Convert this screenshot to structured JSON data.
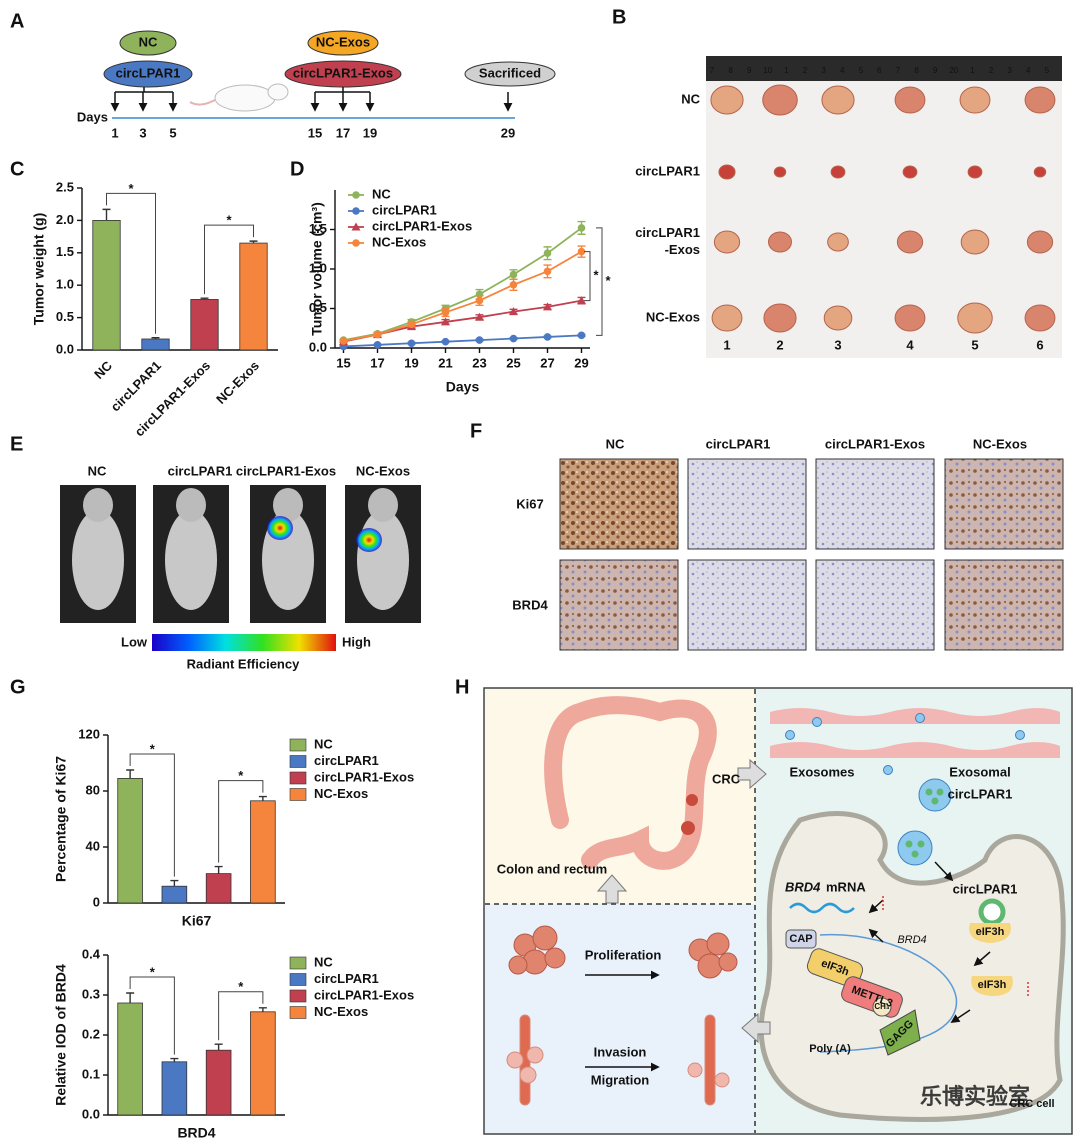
{
  "panel_labels": [
    "A",
    "B",
    "C",
    "D",
    "E",
    "F",
    "G",
    "H"
  ],
  "timeline": {
    "groups": [
      "NC",
      "circLPAR1",
      "NC-Exos",
      "circLPAR1-Exos",
      "Sacrificed"
    ],
    "days_label": "Days",
    "days": [
      1,
      3,
      5,
      15,
      17,
      19,
      29
    ]
  },
  "tumor_photo": {
    "ruler": [
      7,
      8,
      9,
      10,
      1,
      2,
      3,
      4,
      5,
      6,
      7,
      8,
      9,
      20,
      1,
      2,
      3,
      4,
      5
    ],
    "rows": [
      [
        "NC"
      ],
      [
        "circLPAR1"
      ],
      [
        "circLPAR1",
        "-Exos"
      ],
      [
        "NC-Exos"
      ]
    ],
    "columns": [
      1,
      2,
      3,
      4,
      5,
      6
    ]
  },
  "imaging": {
    "groups": [
      "NC",
      "circLPAR1",
      "circLPAR1-Exos",
      "NC-Exos"
    ],
    "scale_low": "Low",
    "scale_high": "High",
    "scale_label": "Radiant Efficiency"
  },
  "ihc": {
    "columns": [
      "NC",
      "circLPAR1",
      "circLPAR1-Exos",
      "NC-Exos"
    ],
    "rows": [
      "Ki67",
      "BRD4"
    ]
  },
  "chart_data": [
    {
      "type": "bar",
      "ylabel": "Tumor weight (g)",
      "categories": [
        "NC",
        "circLPAR1",
        "circLPAR1-Exos",
        "NC-Exos"
      ],
      "values": [
        2.0,
        0.17,
        0.78,
        1.65
      ],
      "errors": [
        0.17,
        0.02,
        0.02,
        0.03
      ],
      "colors": [
        "#8fb35a",
        "#4a78c2",
        "#c0404f",
        "#f5843c"
      ],
      "ylim": [
        0,
        2.5
      ],
      "yticks": [
        {
          "value": 0,
          "label": "0.0"
        },
        {
          "value": 0.5,
          "label": "0.5"
        },
        {
          "value": 1,
          "label": "1.0"
        },
        {
          "value": 1.5,
          "label": "1.5"
        },
        {
          "value": 2,
          "label": "2.0"
        },
        {
          "value": 2.5,
          "label": "2.5"
        }
      ],
      "annotations": [
        "*",
        "*"
      ]
    },
    {
      "type": "line",
      "xlabel": "Days",
      "ylabel": "Tumor volume (cm³)",
      "x": [
        15,
        17,
        19,
        21,
        23,
        25,
        27,
        29
      ],
      "xlim": [
        14.5,
        29.5
      ],
      "xticks": [
        15,
        17,
        19,
        21,
        23,
        25,
        27,
        29
      ],
      "ylim": [
        0,
        2.0
      ],
      "yticks": [
        {
          "value": 0,
          "label": "0.0"
        },
        {
          "value": 0.5,
          "label": "0.5"
        },
        {
          "value": 1,
          "label": "1.0"
        },
        {
          "value": 1.5,
          "label": "1.5"
        }
      ],
      "legend": "upper left",
      "series": [
        {
          "name": "NC",
          "color": "#8fb35a",
          "marker": "circle",
          "values": [
            0.1,
            0.18,
            0.33,
            0.5,
            0.68,
            0.93,
            1.2,
            1.52
          ],
          "errors": [
            0.01,
            0.02,
            0.03,
            0.04,
            0.06,
            0.06,
            0.08,
            0.08
          ]
        },
        {
          "name": "circLPAR1",
          "color": "#4a78c2",
          "marker": "circle",
          "values": [
            0.02,
            0.04,
            0.06,
            0.08,
            0.1,
            0.12,
            0.14,
            0.16
          ],
          "errors": [
            0.005,
            0.005,
            0.01,
            0.01,
            0.01,
            0.01,
            0.01,
            0.01
          ]
        },
        {
          "name": "circLPAR1-Exos",
          "color": "#c0404f",
          "marker": "triangle",
          "values": [
            0.08,
            0.17,
            0.27,
            0.33,
            0.39,
            0.46,
            0.52,
            0.6
          ],
          "errors": [
            0.01,
            0.02,
            0.02,
            0.03,
            0.03,
            0.03,
            0.03,
            0.04
          ]
        },
        {
          "name": "NC-Exos",
          "color": "#f5843c",
          "marker": "circle",
          "values": [
            0.09,
            0.17,
            0.3,
            0.45,
            0.6,
            0.8,
            0.97,
            1.22
          ],
          "errors": [
            0.01,
            0.02,
            0.03,
            0.05,
            0.06,
            0.07,
            0.08,
            0.07
          ]
        }
      ],
      "annotations": [
        "*",
        "*"
      ]
    },
    {
      "type": "bar",
      "ylabel": "Percentage of Ki67",
      "xlabel": "Ki67",
      "categories": [
        "NC",
        "circLPAR1",
        "circLPAR1-Exos",
        "NC-Exos"
      ],
      "values": [
        89,
        12,
        21,
        73
      ],
      "errors": [
        6,
        4,
        5,
        3
      ],
      "colors": [
        "#8fb35a",
        "#4a78c2",
        "#c0404f",
        "#f5843c"
      ],
      "ylim": [
        0,
        120
      ],
      "yticks": [
        0,
        40,
        80,
        120
      ],
      "legend": "right",
      "annotations": [
        "*",
        "*"
      ]
    },
    {
      "type": "bar",
      "ylabel": "Relative IOD of BRD4",
      "xlabel": "BRD4",
      "categories": [
        "NC",
        "circLPAR1",
        "circLPAR1-Exos",
        "NC-Exos"
      ],
      "values": [
        0.28,
        0.133,
        0.162,
        0.258
      ],
      "errors": [
        0.025,
        0.008,
        0.015,
        0.01
      ],
      "colors": [
        "#8fb35a",
        "#4a78c2",
        "#c0404f",
        "#f5843c"
      ],
      "ylim": [
        0,
        0.4
      ],
      "yticks": [
        {
          "value": 0,
          "label": "0.0"
        },
        {
          "value": 0.1,
          "label": "0.1"
        },
        {
          "value": 0.2,
          "label": "0.2"
        },
        {
          "value": 0.3,
          "label": "0.3"
        },
        {
          "value": 0.4,
          "label": "0.4"
        }
      ],
      "legend": "right",
      "annotations": [
        "*",
        "*"
      ]
    }
  ],
  "mechanism": {
    "crc": "CRC",
    "colon": "Colon and rectum",
    "proliferation": "Proliferation",
    "invasion": "Invasion",
    "migration": "Migration",
    "exosomes": "Exosomes",
    "exosomal": [
      "Exosomal",
      "circLPAR1"
    ],
    "brd4_mrna": {
      "gene": "BRD4",
      "label": "mRNA"
    },
    "circ": "circLPAR1",
    "cap": "CAP",
    "brd4": "BRD4",
    "eif3h": [
      "eIF3h",
      "eIF3h",
      "eIF3h"
    ],
    "mettl3": "METTL3",
    "ch3": "CH₃",
    "gagg": "GAGG",
    "polya": "Poly (A)",
    "crc_cell": "CRC cell",
    "watermark": "乐博实验室"
  }
}
